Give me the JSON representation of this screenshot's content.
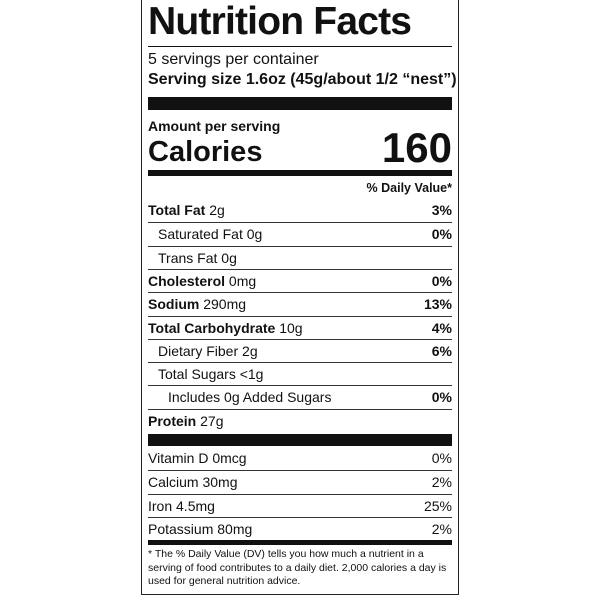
{
  "title": "Nutrition Facts",
  "servings": "5 servings per container",
  "serving_size_label": "Serving size",
  "serving_size": "1.6oz (45g/about 1/2 “nest”)",
  "amount_per_serving": "Amount per serving",
  "calories_label": "Calories",
  "calories": 160,
  "daily_value_header": "% Daily Value*",
  "nutrients": [
    {
      "name": "Total Fat",
      "amount": "2g",
      "dv": "3%",
      "bold": true,
      "indent": 0
    },
    {
      "name": "Saturated Fat",
      "amount": "0g",
      "dv": "0%",
      "bold": false,
      "indent": 1
    },
    {
      "name": "Trans Fat",
      "amount": "0g",
      "dv": null,
      "bold": false,
      "indent": 1
    },
    {
      "name": "Cholesterol",
      "amount": "0mg",
      "dv": "0%",
      "bold": true,
      "indent": 0
    },
    {
      "name": "Sodium",
      "amount": "290mg",
      "dv": "13%",
      "bold": true,
      "indent": 0
    },
    {
      "name": "Total Carbohydrate",
      "amount": "10g",
      "dv": "4%",
      "bold": true,
      "indent": 0
    },
    {
      "name": "Dietary Fiber",
      "amount": "2g",
      "dv": "6%",
      "bold": false,
      "indent": 1
    },
    {
      "name": "Total Sugars",
      "amount": "<1g",
      "dv": null,
      "bold": false,
      "indent": 1
    },
    {
      "name": "Includes 0g Added Sugars",
      "amount": null,
      "dv": "0%",
      "bold": false,
      "indent": 2
    },
    {
      "name": "Protein",
      "amount": "27g",
      "dv": null,
      "bold": true,
      "indent": 0
    }
  ],
  "vitamins": [
    {
      "name": "Vitamin D",
      "amount": "0mcg",
      "dv": "0%"
    },
    {
      "name": "Calcium",
      "amount": "30mg",
      "dv": "2%"
    },
    {
      "name": "Iron",
      "amount": "4.5mg",
      "dv": "25%"
    },
    {
      "name": "Potassium",
      "amount": "80mg",
      "dv": "2%"
    }
  ],
  "footnote": "* The % Daily Value (DV) tells you how much a nutrient in a serving of food contributes to a daily diet. 2,000 calories a day is used for general nutrition advice."
}
